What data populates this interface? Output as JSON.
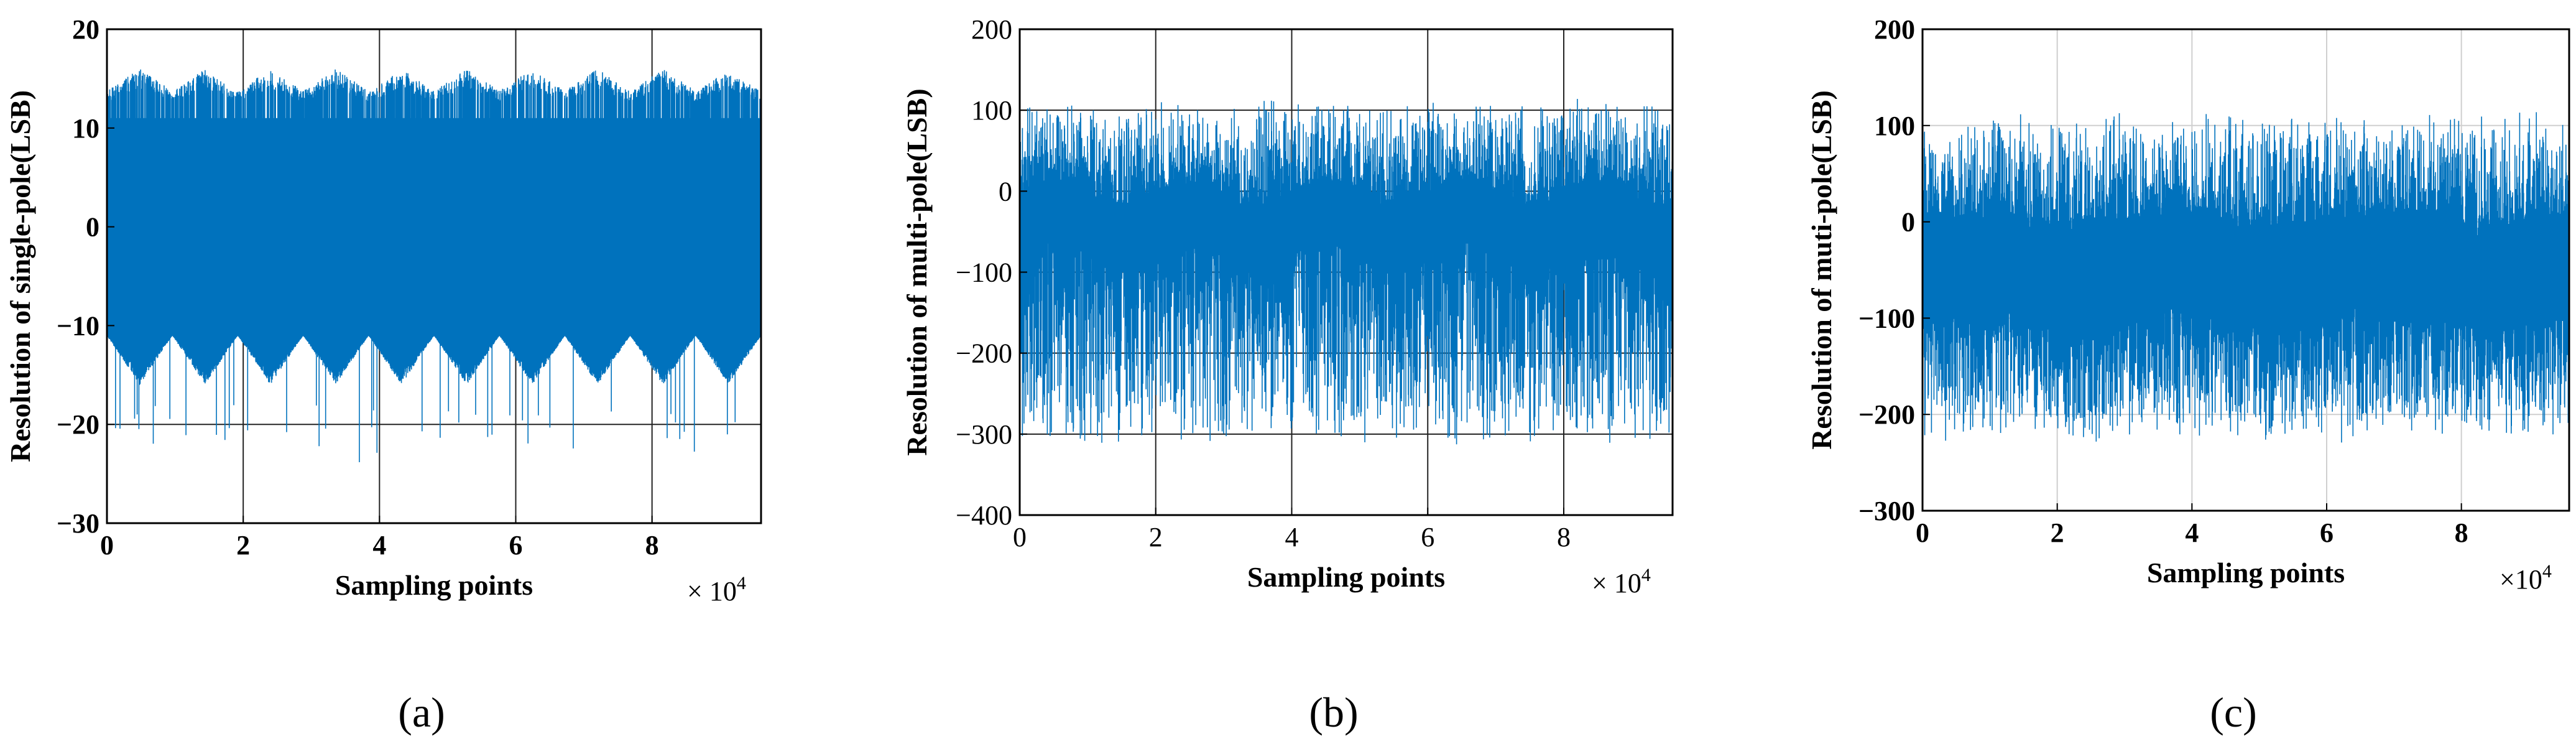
{
  "colors": {
    "series": "#0072BD",
    "grid_dark": "#222222",
    "grid_light": "#cfcfcf"
  },
  "chart_data": [
    {
      "type": "line",
      "panel_label": "(a)",
      "xlabel": "Sampling points",
      "ylabel": "Resolution of single-pole(LSB)",
      "x_exponent_prefix": "× 10",
      "x_exponent_power": "4",
      "xlim": [
        0,
        9.6
      ],
      "ylim": [
        -30,
        20
      ],
      "x_ticks": [
        0,
        2,
        4,
        6,
        8
      ],
      "y_ticks": [
        -30,
        -20,
        -10,
        0,
        10,
        20
      ],
      "x_tick_labels": [
        "0",
        "2",
        "4",
        "6",
        "8"
      ],
      "y_tick_labels": [
        "−30",
        "−20",
        "−10",
        "0",
        "10",
        "20"
      ],
      "grid": true,
      "grid_style": "dark",
      "series": [
        {
          "style": "single-pole",
          "band_low": -11,
          "band_high": 11,
          "upper_envelope_range": [
            11,
            16
          ],
          "lower_envelope_range": [
            -16,
            -11
          ],
          "envelope_period": 0.96,
          "min_value": -24,
          "max_value": 16
        }
      ]
    },
    {
      "type": "line",
      "panel_label": "(b)",
      "xlabel": "Sampling points",
      "ylabel": "Resolution of multi-pole(LSB)",
      "x_exponent_prefix": "× 10",
      "x_exponent_power": "4",
      "xlim": [
        0,
        9.6
      ],
      "ylim": [
        -400,
        200
      ],
      "x_ticks": [
        0,
        2,
        4,
        6,
        8
      ],
      "y_ticks": [
        -400,
        -300,
        -200,
        -100,
        0,
        100,
        200
      ],
      "x_tick_labels": [
        "0",
        "2",
        "4",
        "6",
        "8"
      ],
      "y_tick_labels": [
        "−400",
        "−300",
        "−200",
        "−100",
        "0",
        "100",
        "200"
      ],
      "grid": true,
      "grid_style": "dark",
      "series": [
        {
          "style": "multi-pole",
          "center": -40,
          "core_halfwidth": 45,
          "wave_amplitude": 15,
          "wave_period": 2.0,
          "min_value": -315,
          "max_value": 115
        }
      ]
    },
    {
      "type": "line",
      "panel_label": "(c)",
      "xlabel": "Sampling points",
      "ylabel": "Resolution of muti-pole(LSB)",
      "x_exponent_prefix": "×10",
      "x_exponent_power": "4",
      "xlim": [
        0,
        9.6
      ],
      "ylim": [
        -300,
        200
      ],
      "x_ticks": [
        0,
        2,
        4,
        6,
        8
      ],
      "y_ticks": [
        -300,
        -200,
        -100,
        0,
        100,
        200
      ],
      "x_tick_labels": [
        "0",
        "2",
        "4",
        "6",
        "8"
      ],
      "y_tick_labels": [
        "−300",
        "−200",
        "−100",
        "0",
        "100",
        "200"
      ],
      "grid": true,
      "grid_style": "light",
      "series": [
        {
          "style": "multi-pole",
          "center": -50,
          "core_halfwidth": 60,
          "wave_amplitude": 8,
          "wave_period": 3.0,
          "min_value": -230,
          "max_value": 115
        }
      ]
    }
  ]
}
